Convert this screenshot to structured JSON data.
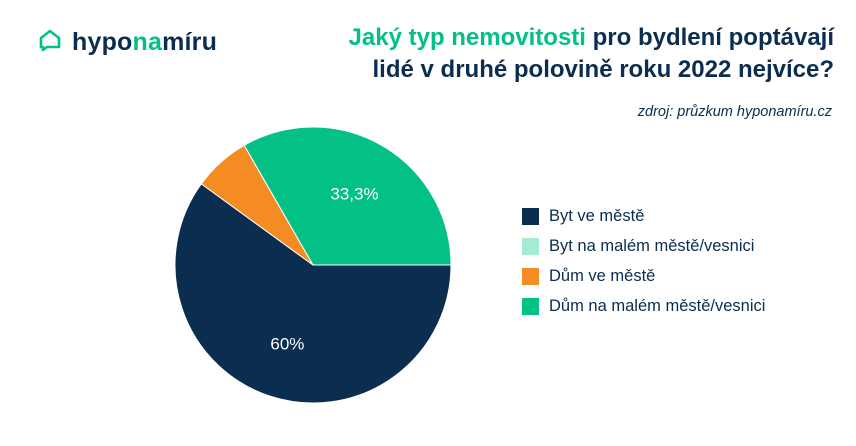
{
  "logo": {
    "part1": "hypo",
    "part2": "na",
    "part3": "míru",
    "icon": "house-speech-icon",
    "accent_color": "#03c087",
    "text_color": "#0b2d4f"
  },
  "title": {
    "highlight": "Jaký typ nemovitosti",
    "rest_line1": " pro bydlení poptávají",
    "line2": "lidé v druhé polovině roku 2022 nejvíce?"
  },
  "source": "zdroj: průzkum hyponamíru.cz",
  "chart_data": {
    "type": "pie",
    "title": "Jaký typ nemovitosti pro bydlení poptávají lidé v druhé polovině roku 2022 nejvíce?",
    "start_angle_deg": 0,
    "direction": "clockwise",
    "series": [
      {
        "name": "Byt ve městě",
        "value": 60,
        "label": "60%",
        "color": "#0b2d4f"
      },
      {
        "name": "Byt na malém městě/vesnici",
        "value": 0,
        "label": "",
        "color": "#a6ecd3"
      },
      {
        "name": "Dům ve městě",
        "value": 6.7,
        "label": "",
        "color": "#f58c23"
      },
      {
        "name": "Dům na malém městě/vesnici",
        "value": 33.3,
        "label": "33,3%",
        "color": "#03c087"
      }
    ],
    "legend_position": "right"
  }
}
